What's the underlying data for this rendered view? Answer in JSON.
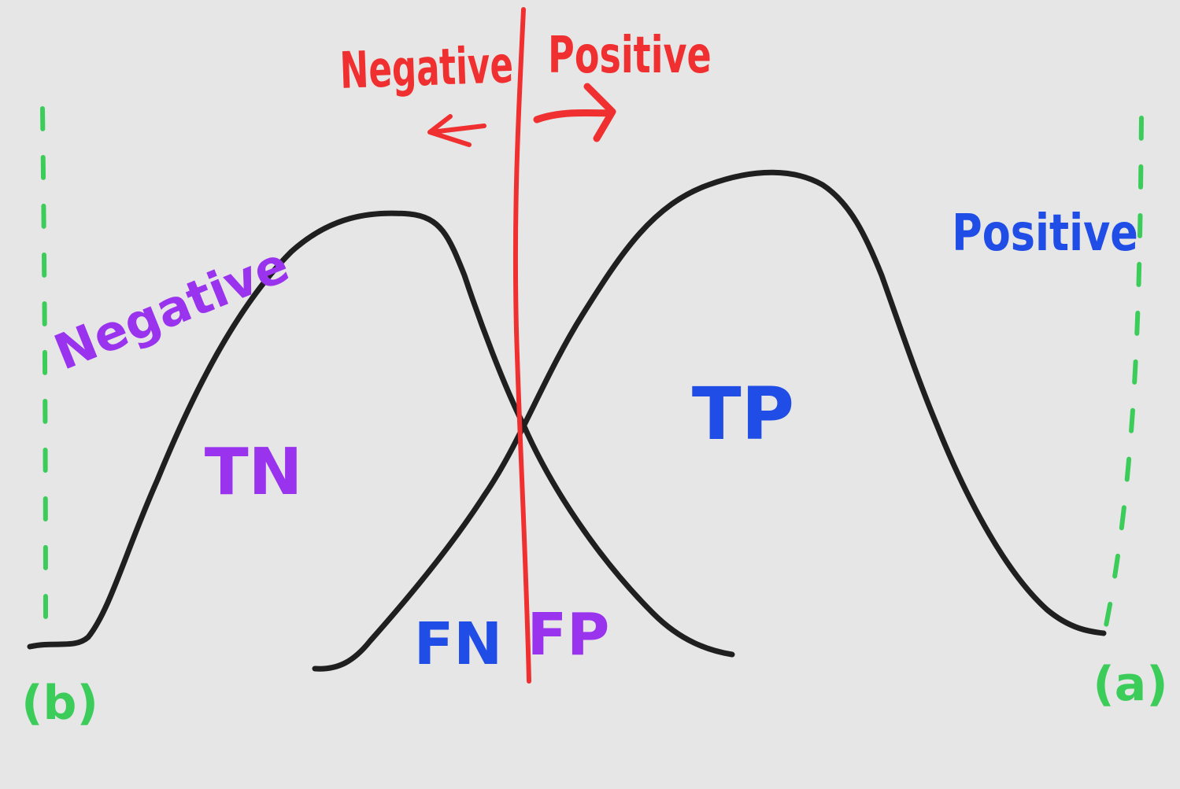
{
  "colors": {
    "background": "#e6e6e6",
    "curve": "#1f1f1f",
    "threshold": "#f03030",
    "negative_class": "#9933ee",
    "positive_class": "#1f4de6",
    "boundary": "#3ccc5a"
  },
  "threshold_labels": {
    "left": "Negative",
    "right": "Positive"
  },
  "curve_labels": {
    "negative": "Negative",
    "positive": "Positive"
  },
  "regions": {
    "tn": "TN",
    "tp": "TP",
    "fn": "FN",
    "fp": "FP"
  },
  "markers": {
    "left": "(b)",
    "right": "(a)"
  }
}
